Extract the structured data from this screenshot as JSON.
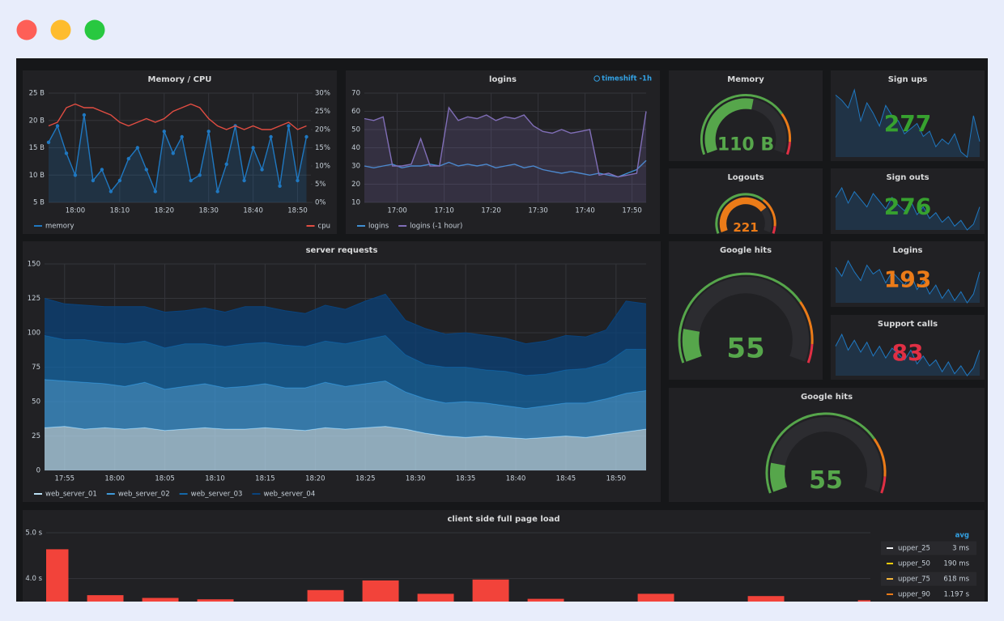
{
  "chart_data": [
    {
      "type": "line",
      "title": "Memory / CPU",
      "x": [
        "17:54",
        "17:56",
        "17:58",
        "18:00",
        "18:02",
        "18:04",
        "18:06",
        "18:08",
        "18:10",
        "18:12",
        "18:14",
        "18:16",
        "18:18",
        "18:20",
        "18:22",
        "18:24",
        "18:26",
        "18:28",
        "18:30",
        "18:32",
        "18:34",
        "18:36",
        "18:38",
        "18:40",
        "18:42",
        "18:44",
        "18:46",
        "18:48",
        "18:50",
        "18:52"
      ],
      "xlim": [
        "17:54",
        "18:53"
      ],
      "xticks": [
        "18:00",
        "18:10",
        "18:20",
        "18:30",
        "18:40",
        "18:50"
      ],
      "ylim": [
        5,
        25
      ],
      "yticks": [
        {
          "value": 5,
          "label": "5 B"
        },
        {
          "value": 10,
          "label": "10 B"
        },
        {
          "value": 15,
          "label": "15 B"
        },
        {
          "value": 20,
          "label": "20 B"
        },
        {
          "value": 25,
          "label": "25 B"
        }
      ],
      "y2lim": [
        0,
        30
      ],
      "y2ticks": [
        {
          "value": 0,
          "label": "0%"
        },
        {
          "value": 5,
          "label": "5%"
        },
        {
          "value": 10,
          "label": "10%"
        },
        {
          "value": 15,
          "label": "15%"
        },
        {
          "value": 20,
          "label": "20%"
        },
        {
          "value": 25,
          "label": "25%"
        },
        {
          "value": 30,
          "label": "30%"
        }
      ],
      "grid": true,
      "series": [
        {
          "name": "memory",
          "color": "#1f78c1",
          "fill": true,
          "points": true,
          "values": [
            16,
            19,
            14,
            10,
            21,
            9,
            11,
            7,
            9,
            13,
            15,
            11,
            7,
            18,
            14,
            17,
            9,
            10,
            18,
            7,
            12,
            19,
            9,
            15,
            11,
            17,
            8,
            19,
            9,
            17
          ]
        },
        {
          "name": "cpu",
          "color": "#e24d42",
          "axis": "y2",
          "values": [
            21,
            22,
            26,
            27,
            26,
            26,
            25,
            24,
            22,
            21,
            22,
            23,
            22,
            23,
            25,
            26,
            27,
            26,
            23,
            21,
            20,
            21,
            20,
            21,
            20,
            20,
            21,
            22,
            20,
            21
          ]
        }
      ]
    },
    {
      "type": "line",
      "title": "logins",
      "annotation": "timeshift -1h",
      "x": [
        "16:53",
        "16:55",
        "16:57",
        "16:59",
        "17:01",
        "17:03",
        "17:05",
        "17:07",
        "17:09",
        "17:11",
        "17:13",
        "17:15",
        "17:17",
        "17:19",
        "17:21",
        "17:23",
        "17:25",
        "17:27",
        "17:29",
        "17:31",
        "17:33",
        "17:35",
        "17:37",
        "17:39",
        "17:41",
        "17:43",
        "17:45",
        "17:47",
        "17:49",
        "17:51",
        "17:53"
      ],
      "xlim": [
        "16:53",
        "17:53"
      ],
      "xticks": [
        "17:00",
        "17:10",
        "17:20",
        "17:30",
        "17:40",
        "17:50"
      ],
      "ylim": [
        10,
        70
      ],
      "yticks": [
        10,
        20,
        30,
        40,
        50,
        60,
        70
      ],
      "grid": true,
      "series": [
        {
          "name": "logins",
          "color": "#3f8fd2",
          "values": [
            30,
            29,
            30,
            31,
            29,
            30,
            30,
            31,
            30,
            32,
            30,
            31,
            30,
            31,
            29,
            30,
            31,
            29,
            30,
            28,
            27,
            26,
            27,
            26,
            25,
            26,
            25,
            24,
            26,
            28,
            33
          ]
        },
        {
          "name": "logins (-1 hour)",
          "color": "#806eb7",
          "fill": true,
          "values": [
            56,
            55,
            57,
            30,
            30,
            31,
            45,
            30,
            30,
            62,
            55,
            57,
            56,
            58,
            55,
            57,
            56,
            58,
            52,
            49,
            48,
            50,
            48,
            49,
            50,
            25,
            26,
            24,
            25,
            26,
            60
          ]
        }
      ]
    },
    {
      "type": "gauge",
      "title": "Memory",
      "value": 110,
      "value_label": "110 B",
      "min": 0,
      "max": 200,
      "thresholds": [
        {
          "value": 0,
          "color": "#56a64b"
        },
        {
          "value": 150,
          "color": "#eb7b18"
        },
        {
          "value": 185,
          "color": "#e02f44"
        }
      ]
    },
    {
      "type": "stat",
      "title": "Sign ups",
      "value": 277,
      "color": "#37a12f",
      "sparkline": [
        60,
        58,
        55,
        62,
        50,
        57,
        53,
        48,
        56,
        52,
        50,
        45,
        47,
        49,
        44,
        46,
        40,
        43,
        41,
        45,
        38,
        36,
        52,
        42
      ]
    },
    {
      "type": "gauge",
      "title": "Logouts",
      "value": 221,
      "min": 0,
      "max": 300,
      "thresholds": [
        {
          "value": 0,
          "color": "#56a64b"
        },
        {
          "value": 200,
          "color": "#eb7b18"
        },
        {
          "value": 280,
          "color": "#e02f44"
        }
      ]
    },
    {
      "type": "stat",
      "title": "Sign outs",
      "value": 276,
      "color": "#37a12f",
      "sparkline": [
        55,
        60,
        52,
        58,
        54,
        50,
        57,
        53,
        49,
        55,
        51,
        48,
        53,
        46,
        50,
        44,
        47,
        42,
        45,
        40,
        43,
        38,
        41,
        50
      ]
    },
    {
      "type": "area",
      "title": "server requests",
      "stacked": true,
      "x": [
        "17:53",
        "17:55",
        "17:57",
        "17:59",
        "18:01",
        "18:03",
        "18:05",
        "18:07",
        "18:09",
        "18:11",
        "18:13",
        "18:15",
        "18:17",
        "18:19",
        "18:21",
        "18:23",
        "18:25",
        "18:27",
        "18:29",
        "18:31",
        "18:33",
        "18:35",
        "18:37",
        "18:39",
        "18:41",
        "18:43",
        "18:45",
        "18:47",
        "18:49",
        "18:51",
        "18:53"
      ],
      "xlim": [
        "17:53",
        "18:53"
      ],
      "xticks": [
        "17:55",
        "18:00",
        "18:05",
        "18:10",
        "18:15",
        "18:20",
        "18:25",
        "18:30",
        "18:35",
        "18:40",
        "18:45",
        "18:50"
      ],
      "ylim": [
        0,
        150
      ],
      "yticks": [
        0,
        25,
        50,
        75,
        100,
        125,
        150
      ],
      "grid": true,
      "series": [
        {
          "name": "web_server_01",
          "color": "#badff4",
          "values": [
            31,
            32,
            30,
            31,
            30,
            31,
            29,
            30,
            31,
            30,
            30,
            31,
            30,
            29,
            31,
            30,
            31,
            32,
            30,
            27,
            25,
            24,
            25,
            24,
            23,
            24,
            25,
            24,
            26,
            28,
            30
          ]
        },
        {
          "name": "web_server_02",
          "color": "#3f9ad9",
          "values": [
            35,
            33,
            34,
            32,
            31,
            33,
            30,
            31,
            32,
            30,
            31,
            32,
            30,
            31,
            33,
            31,
            32,
            33,
            27,
            25,
            24,
            26,
            24,
            23,
            22,
            23,
            24,
            25,
            26,
            28,
            28
          ]
        },
        {
          "name": "web_server_03",
          "color": "#1468a8",
          "values": [
            32,
            30,
            31,
            30,
            31,
            30,
            30,
            31,
            29,
            30,
            31,
            30,
            31,
            30,
            30,
            31,
            32,
            33,
            27,
            25,
            26,
            25,
            24,
            25,
            24,
            23,
            24,
            25,
            26,
            32,
            30
          ]
        },
        {
          "name": "web_server_04",
          "color": "#0a437c",
          "values": [
            27,
            26,
            25,
            26,
            27,
            25,
            26,
            24,
            26,
            25,
            27,
            26,
            25,
            24,
            26,
            25,
            28,
            30,
            25,
            26,
            24,
            25,
            25,
            24,
            23,
            24,
            25,
            23,
            24,
            35,
            33
          ]
        }
      ]
    },
    {
      "type": "gauge",
      "title": "Google hits",
      "value": 55,
      "min": 0,
      "max": 400,
      "thresholds": [
        {
          "value": 0,
          "color": "#56a64b"
        },
        {
          "value": 300,
          "color": "#eb7b18"
        },
        {
          "value": 370,
          "color": "#e02f44"
        }
      ]
    },
    {
      "type": "stat",
      "title": "Logins",
      "value": 193,
      "color": "#eb7b18",
      "sparkline": [
        52,
        48,
        55,
        50,
        46,
        53,
        49,
        51,
        45,
        50,
        47,
        44,
        49,
        42,
        46,
        40,
        44,
        38,
        42,
        37,
        41,
        36,
        40,
        50
      ]
    },
    {
      "type": "stat",
      "title": "Support calls",
      "value": 83,
      "color": "#e02f44",
      "sparkline": [
        50,
        56,
        48,
        53,
        47,
        52,
        45,
        50,
        44,
        49,
        46,
        43,
        48,
        41,
        45,
        40,
        43,
        37,
        42,
        36,
        40,
        35,
        39,
        48
      ]
    },
    {
      "type": "gauge",
      "title": "Google hits",
      "value": 55,
      "min": 0,
      "max": 400,
      "thresholds": [
        {
          "value": 0,
          "color": "#56a64b"
        },
        {
          "value": 300,
          "color": "#eb7b18"
        },
        {
          "value": 370,
          "color": "#e02f44"
        }
      ]
    },
    {
      "type": "bar",
      "title": "client side full page load",
      "color": "#f2433a",
      "categories": [
        null,
        null,
        null,
        null,
        null,
        null,
        null,
        null,
        null,
        null,
        null,
        null,
        null,
        null,
        null,
        null
      ],
      "values": [
        4.64,
        3.64,
        3.58,
        3.55,
        null,
        3.75,
        3.96,
        3.67,
        3.98,
        3.56,
        null,
        3.67,
        null,
        3.62,
        null,
        3.53
      ],
      "ylim": [
        3.5,
        5.0
      ],
      "yticks": [
        {
          "value": 5,
          "label": "5.0 s"
        },
        {
          "value": 4,
          "label": "4.0 s"
        }
      ],
      "grid": true,
      "legend_table": {
        "header": "avg",
        "rows": [
          {
            "name": "upper_25",
            "value": "3 ms",
            "color": "#f4f5f8"
          },
          {
            "name": "upper_50",
            "value": "190 ms",
            "color": "#f2cc0c"
          },
          {
            "name": "upper_75",
            "value": "618 ms",
            "color": "#f5b73d"
          },
          {
            "name": "upper_90",
            "value": "1.197 s",
            "color": "#eb7b18"
          }
        ]
      }
    }
  ]
}
